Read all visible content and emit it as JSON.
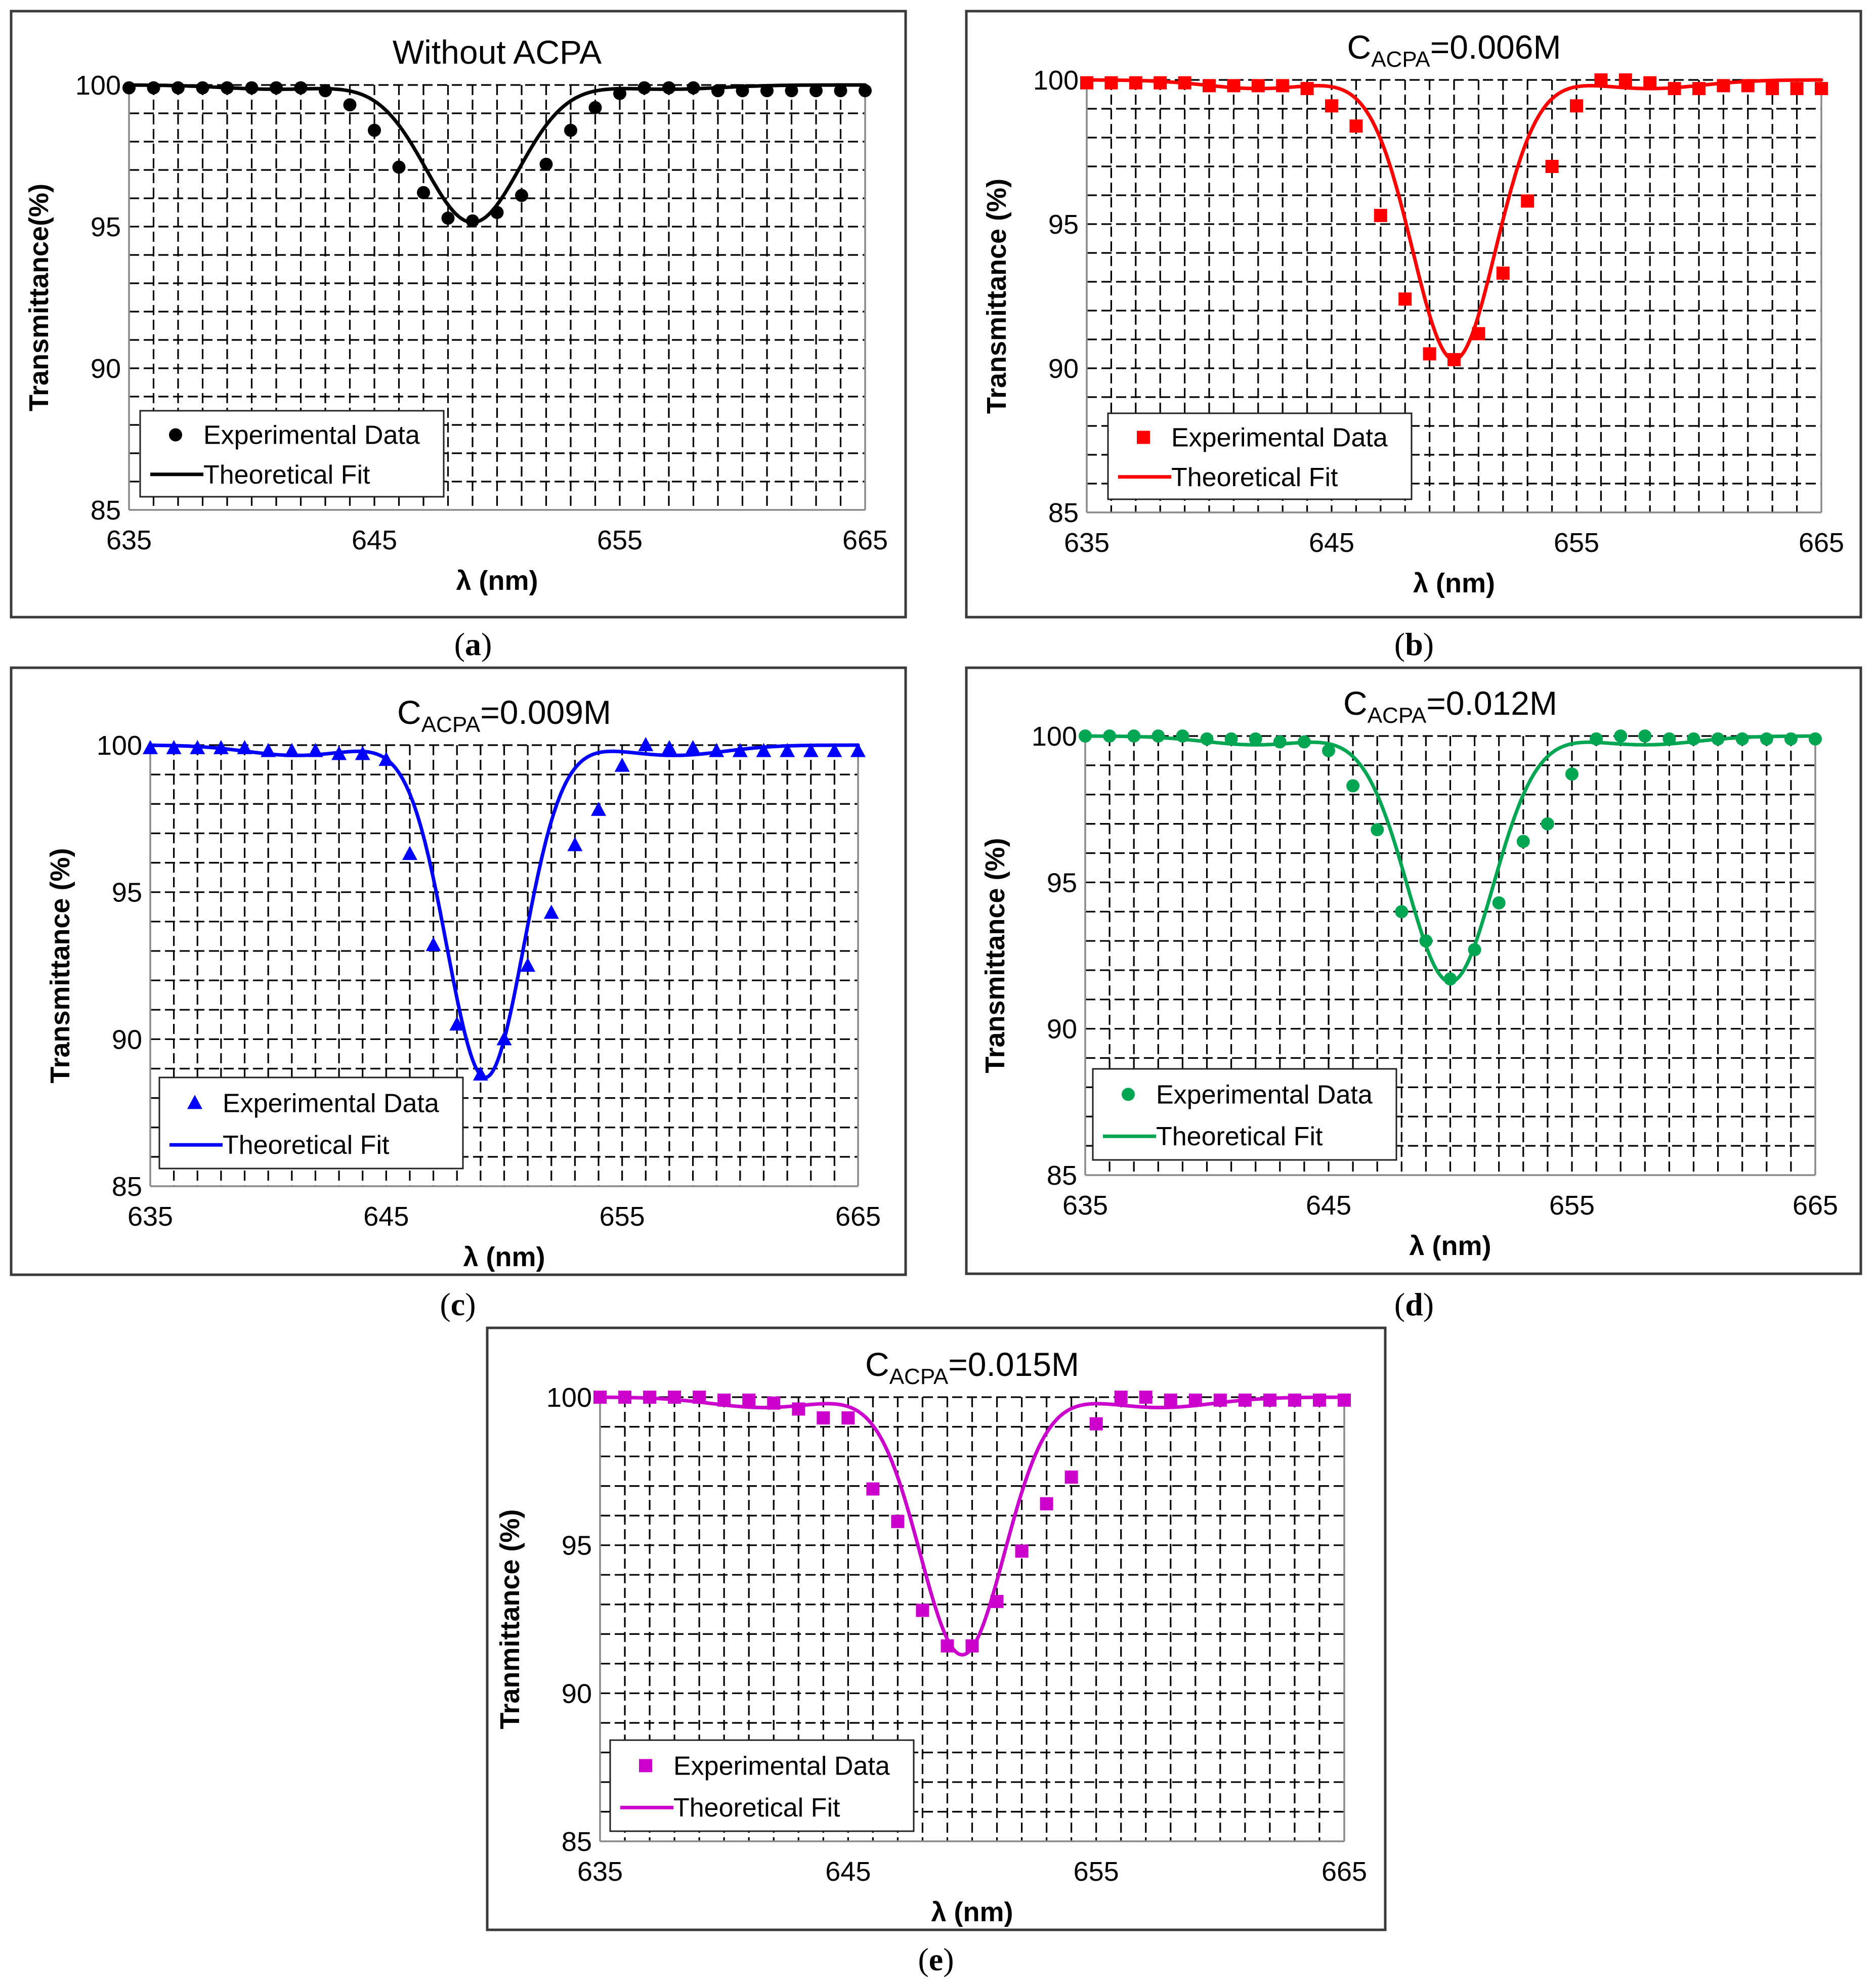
{
  "chart_data": [
    {
      "type": "scatter",
      "panel": "a",
      "caption_letter": "a",
      "title": "Without ACPA",
      "title_main": "Without ACPA",
      "title_sub": "",
      "title_suffix": "",
      "xlabel": "λ (nm)",
      "ylabel": "Transmittance(%)",
      "xlim": [
        635,
        665
      ],
      "ylim": [
        85,
        100
      ],
      "xticks": [
        635,
        645,
        655,
        665
      ],
      "yticks": [
        85,
        90,
        95,
        100
      ],
      "color": "#000000",
      "marker": "circle",
      "legend": [
        "Experimental Data",
        "Theoretical Fit"
      ],
      "legend_position": "bottom-left",
      "fit": {
        "dip_center": 649.0,
        "dip_depth": 4.85,
        "dip_width": 2.7,
        "ripple": 0.15
      },
      "series": [
        {
          "name": "Experimental Data",
          "x": [
            635,
            636,
            637,
            638,
            639,
            640,
            641,
            642,
            643,
            644,
            645,
            646,
            647,
            648,
            649,
            650,
            651,
            652,
            653,
            654,
            655,
            656,
            657,
            658,
            659,
            660,
            661,
            662,
            663,
            664,
            665
          ],
          "y": [
            99.9,
            99.9,
            99.9,
            99.9,
            99.9,
            99.9,
            99.9,
            99.9,
            99.8,
            99.3,
            98.4,
            97.1,
            96.2,
            95.3,
            95.2,
            95.5,
            96.1,
            97.2,
            98.4,
            99.2,
            99.7,
            99.9,
            99.9,
            99.9,
            99.8,
            99.8,
            99.8,
            99.8,
            99.8,
            99.8,
            99.8
          ]
        },
        {
          "name": "Theoretical Fit",
          "x": [],
          "y": []
        }
      ]
    },
    {
      "type": "scatter",
      "panel": "b",
      "caption_letter": "b",
      "title": "CACPA=0.006M",
      "title_main": "C",
      "title_sub": "ACPA",
      "title_suffix": "=0.006M",
      "xlabel": "λ (nm)",
      "ylabel": "Transmittance (%)",
      "xlim": [
        635,
        665
      ],
      "ylim": [
        85,
        100
      ],
      "xticks": [
        635,
        645,
        655,
        665
      ],
      "yticks": [
        85,
        90,
        95,
        100
      ],
      "color": "#ff0000",
      "marker": "square",
      "legend": [
        "Experimental Data",
        "Theoretical Fit"
      ],
      "legend_position": "bottom-left",
      "fit": {
        "dip_center": 650.0,
        "dip_depth": 9.7,
        "dip_width": 2.4,
        "ripple": 0.3
      },
      "series": [
        {
          "name": "Experimental Data",
          "x": [
            635,
            636,
            637,
            638,
            639,
            640,
            641,
            642,
            643,
            644,
            645,
            646,
            647,
            648,
            649,
            650,
            651,
            652,
            653,
            654,
            655,
            656,
            657,
            658,
            659,
            660,
            661,
            662,
            663,
            664,
            665
          ],
          "y": [
            99.9,
            99.9,
            99.9,
            99.9,
            99.9,
            99.8,
            99.8,
            99.8,
            99.8,
            99.7,
            99.1,
            98.4,
            95.3,
            92.4,
            90.5,
            90.3,
            91.2,
            93.3,
            95.8,
            97.0,
            99.1,
            100.0,
            100.0,
            99.9,
            99.7,
            99.7,
            99.8,
            99.8,
            99.7,
            99.7,
            99.7
          ]
        },
        {
          "name": "Theoretical Fit",
          "x": [],
          "y": []
        }
      ]
    },
    {
      "type": "scatter",
      "panel": "c",
      "caption_letter": "c",
      "title": "CACPA=0.009M",
      "title_main": "C",
      "title_sub": "ACPA",
      "title_suffix": "=0.009M",
      "xlabel": "λ (nm)",
      "ylabel": "Transmittance (%)",
      "xlim": [
        635,
        665
      ],
      "ylim": [
        85,
        100
      ],
      "xticks": [
        635,
        645,
        655,
        665
      ],
      "yticks": [
        85,
        90,
        95,
        100
      ],
      "color": "#0000ff",
      "marker": "triangle",
      "legend": [
        "Experimental Data",
        "Theoretical Fit"
      ],
      "legend_position": "bottom-left",
      "fit": {
        "dip_center": 649.2,
        "dip_depth": 11.3,
        "dip_width": 2.3,
        "ripple": 0.35
      },
      "series": [
        {
          "name": "Experimental Data",
          "x": [
            635,
            636,
            637,
            638,
            639,
            640,
            641,
            642,
            643,
            644,
            645,
            646,
            647,
            648,
            649,
            650,
            651,
            652,
            653,
            654,
            655,
            656,
            657,
            658,
            659,
            660,
            661,
            662,
            663,
            664,
            665
          ],
          "y": [
            99.9,
            99.9,
            99.9,
            99.9,
            99.9,
            99.8,
            99.8,
            99.8,
            99.7,
            99.7,
            99.5,
            96.3,
            93.2,
            90.5,
            88.8,
            90.0,
            92.5,
            94.3,
            96.6,
            97.8,
            99.3,
            100.0,
            99.9,
            99.9,
            99.8,
            99.8,
            99.8,
            99.8,
            99.8,
            99.8,
            99.8
          ]
        },
        {
          "name": "Theoretical Fit",
          "x": [],
          "y": []
        }
      ]
    },
    {
      "type": "scatter",
      "panel": "d",
      "caption_letter": "d",
      "title": "CACPA=0.012M",
      "title_main": "C",
      "title_sub": "ACPA",
      "title_suffix": "=0.012M",
      "xlabel": "λ (nm)",
      "ylabel": "Transmittance (%)",
      "xlim": [
        635,
        665
      ],
      "ylim": [
        85,
        100
      ],
      "xticks": [
        635,
        645,
        655,
        665
      ],
      "yticks": [
        85,
        90,
        95,
        100
      ],
      "color": "#00a651",
      "marker": "circle",
      "legend": [
        "Experimental Data",
        "Theoretical Fit"
      ],
      "legend_position": "bottom-left",
      "fit": {
        "dip_center": 650.0,
        "dip_depth": 8.4,
        "dip_width": 2.5,
        "ripple": 0.3
      },
      "series": [
        {
          "name": "Experimental Data",
          "x": [
            635,
            636,
            637,
            638,
            639,
            640,
            641,
            642,
            643,
            644,
            645,
            646,
            647,
            648,
            649,
            650,
            651,
            652,
            653,
            654,
            655,
            656,
            657,
            658,
            659,
            660,
            661,
            662,
            663,
            664,
            665
          ],
          "y": [
            100.0,
            100.0,
            100.0,
            100.0,
            100.0,
            99.9,
            99.9,
            99.9,
            99.8,
            99.8,
            99.5,
            98.3,
            96.8,
            94.0,
            93.0,
            91.7,
            92.7,
            94.3,
            96.4,
            97.0,
            98.7,
            99.9,
            100.0,
            100.0,
            99.9,
            99.9,
            99.9,
            99.9,
            99.9,
            99.9,
            99.9
          ]
        },
        {
          "name": "Theoretical Fit",
          "x": [],
          "y": []
        }
      ]
    },
    {
      "type": "scatter",
      "panel": "e",
      "caption_letter": "e",
      "title": "CACPA=0.015M",
      "title_main": "C",
      "title_sub": "ACPA",
      "title_suffix": "=0.015M",
      "xlabel": "λ (nm)",
      "ylabel": "Tranmittance (%)",
      "xlim": [
        635,
        665
      ],
      "ylim": [
        85,
        100
      ],
      "xticks": [
        635,
        645,
        655,
        665
      ],
      "yticks": [
        85,
        90,
        95,
        100
      ],
      "color": "#cc00cc",
      "marker": "square",
      "legend": [
        "Experimental Data",
        "Theoretical Fit"
      ],
      "legend_position": "bottom-left",
      "fit": {
        "dip_center": 649.6,
        "dip_depth": 8.7,
        "dip_width": 2.4,
        "ripple": 0.35
      },
      "series": [
        {
          "name": "Experimental Data",
          "x": [
            635,
            636,
            637,
            638,
            639,
            640,
            641,
            642,
            643,
            644,
            645,
            646,
            647,
            648,
            649,
            650,
            651,
            652,
            653,
            654,
            655,
            656,
            657,
            658,
            659,
            660,
            661,
            662,
            663,
            664,
            665
          ],
          "y": [
            100.0,
            100.0,
            100.0,
            100.0,
            100.0,
            99.9,
            99.9,
            99.8,
            99.6,
            99.3,
            99.3,
            96.9,
            95.8,
            92.8,
            91.6,
            91.6,
            93.1,
            94.8,
            96.4,
            97.3,
            99.1,
            100.0,
            100.0,
            99.9,
            99.9,
            99.9,
            99.9,
            99.9,
            99.9,
            99.9,
            99.9
          ]
        },
        {
          "name": "Theoretical Fit",
          "x": [],
          "y": []
        }
      ]
    }
  ]
}
